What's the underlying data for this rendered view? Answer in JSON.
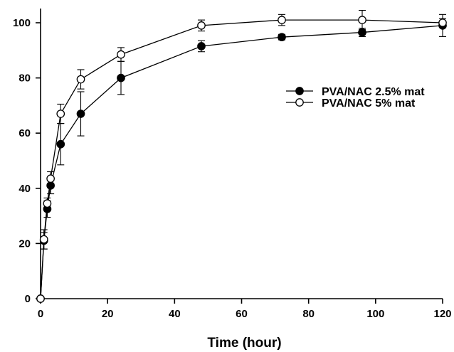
{
  "chart_data": {
    "type": "line",
    "title": "",
    "xlabel": "Time (hour)",
    "ylabel": "",
    "xlim": [
      0,
      120
    ],
    "ylim": [
      0,
      105
    ],
    "xticks": [
      0,
      20,
      40,
      60,
      80,
      100,
      120
    ],
    "yticks": [
      0,
      20,
      40,
      60,
      80,
      100
    ],
    "grid": false,
    "legend_position": "right",
    "series": [
      {
        "name": "PVA/NAC 2.5% mat",
        "marker": "filled-circle",
        "color": "#000000",
        "x": [
          0,
          1,
          2,
          3,
          6,
          12,
          24,
          48,
          72,
          96,
          120
        ],
        "y": [
          0,
          21,
          32.5,
          41,
          56,
          67,
          80,
          91.5,
          94.8,
          96.5,
          99
        ],
        "error": [
          0,
          3,
          3,
          3,
          7.5,
          8,
          6,
          2,
          1,
          1.5,
          4
        ]
      },
      {
        "name": "PVA/NAC 5% mat",
        "marker": "open-circle",
        "color": "#000000",
        "x": [
          0,
          1,
          2,
          3,
          6,
          12,
          24,
          48,
          72,
          96,
          120
        ],
        "y": [
          0,
          21.5,
          34.5,
          43.5,
          67,
          79.5,
          88.5,
          99,
          101,
          101,
          100
        ],
        "error": [
          0,
          3.5,
          2,
          2.5,
          3.5,
          3.5,
          2.5,
          2,
          2,
          3.5,
          1.5
        ]
      }
    ]
  }
}
